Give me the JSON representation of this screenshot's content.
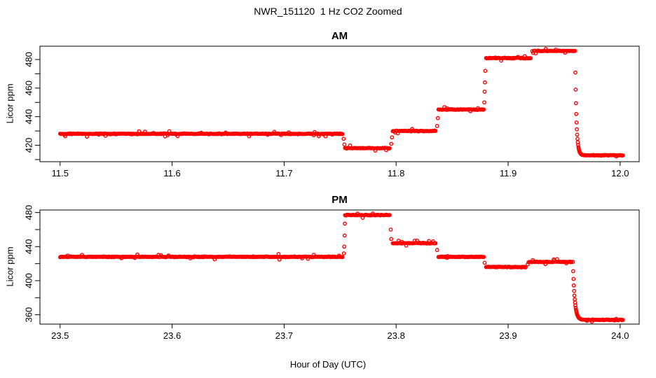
{
  "main_title": "NWR_151120  1 Hz CO2 Zoomed",
  "xlabel": "Hour of Day (UTC)",
  "marker_color": "#FF0000",
  "chart_data": [
    {
      "type": "scatter",
      "title": "AM",
      "ylabel": "Licor ppm",
      "marker": "open-circle",
      "color": "#FF0000",
      "grid": false,
      "xlim": [
        11.482,
        12.017
      ],
      "ylim": [
        408.5,
        489.3
      ],
      "x_ticks": [
        {
          "v": 11.5,
          "label": "11.5"
        },
        {
          "v": 11.6,
          "label": "11.6"
        },
        {
          "v": 11.7,
          "label": "11.7"
        },
        {
          "v": 11.8,
          "label": "11.8"
        },
        {
          "v": 11.9,
          "label": "11.9"
        },
        {
          "v": 12.0,
          "label": "12.0"
        }
      ],
      "y_ticks": [
        {
          "v": 420,
          "label": "420"
        },
        {
          "v": 440,
          "label": "440"
        },
        {
          "v": 460,
          "label": "460"
        },
        {
          "v": 480,
          "label": "480"
        }
      ],
      "y_minor_ticks": [
        410,
        430,
        450,
        470
      ],
      "segments": [
        {
          "t0": 11.5,
          "t1": 11.7525,
          "value": 428
        },
        {
          "t0": 11.7544,
          "t1": 11.7947,
          "value": 418
        },
        {
          "t0": 11.797,
          "t1": 11.8359,
          "value": 430
        },
        {
          "t0": 11.8378,
          "t1": 11.8784,
          "value": 445
        },
        {
          "t0": 11.8803,
          "t1": 11.9203,
          "value": 481
        },
        {
          "t0": 11.9216,
          "t1": 11.9594,
          "value": 486
        },
        {
          "t0": 11.968,
          "t1": 12.0031,
          "value": 413
        }
      ],
      "transitions": [
        [
          11.7531,
          424.5
        ],
        [
          11.7538,
          420.5
        ],
        [
          11.7956,
          421.0
        ],
        [
          11.7963,
          425.5
        ],
        [
          11.8366,
          433.5
        ],
        [
          11.8372,
          439.0
        ],
        [
          11.8787,
          450.0
        ],
        [
          11.879,
          457.5
        ],
        [
          11.8793,
          464.0
        ],
        [
          11.8796,
          472.0
        ]
      ],
      "decay": {
        "t0": 11.9597,
        "t1": 11.9675,
        "from": 486,
        "to": 413,
        "tau": 0.0012
      }
    },
    {
      "type": "scatter",
      "title": "PM",
      "ylabel": "Licor ppm",
      "marker": "open-circle",
      "color": "#FF0000",
      "grid": false,
      "xlim": [
        23.482,
        24.017
      ],
      "ylim": [
        349.0,
        483.0
      ],
      "x_ticks": [
        {
          "v": 23.5,
          "label": "23.5"
        },
        {
          "v": 23.6,
          "label": "23.6"
        },
        {
          "v": 23.7,
          "label": "23.7"
        },
        {
          "v": 23.8,
          "label": "23.8"
        },
        {
          "v": 23.9,
          "label": "23.9"
        },
        {
          "v": 24.0,
          "label": "24.0"
        }
      ],
      "y_ticks": [
        {
          "v": 360,
          "label": "360"
        },
        {
          "v": 400,
          "label": "400"
        },
        {
          "v": 440,
          "label": "440"
        },
        {
          "v": 480,
          "label": "480"
        }
      ],
      "y_minor_ticks": [
        380,
        420,
        460
      ],
      "segments": [
        {
          "t0": 23.5,
          "t1": 23.7525,
          "value": 428
        },
        {
          "t0": 23.7544,
          "t1": 23.7947,
          "value": 477
        },
        {
          "t0": 23.797,
          "t1": 23.8359,
          "value": 444
        },
        {
          "t0": 23.8378,
          "t1": 23.8784,
          "value": 428
        },
        {
          "t0": 23.8803,
          "t1": 23.9156,
          "value": 416
        },
        {
          "t0": 23.9175,
          "t1": 23.9569,
          "value": 422
        },
        {
          "t0": 23.968,
          "t1": 24.0031,
          "value": 354
        }
      ],
      "transitions": [
        [
          23.7534,
          432.0
        ],
        [
          23.7537,
          440.0
        ],
        [
          23.754,
          453.0
        ],
        [
          23.7542,
          467.0
        ],
        [
          23.7952,
          460.0
        ],
        [
          23.7956,
          449.0
        ],
        [
          23.8366,
          436.0
        ],
        [
          23.879,
          421.0
        ]
      ],
      "decay": {
        "t0": 23.9578,
        "t1": 23.9672,
        "from": 422,
        "to": 354,
        "tau": 0.0016
      }
    }
  ]
}
